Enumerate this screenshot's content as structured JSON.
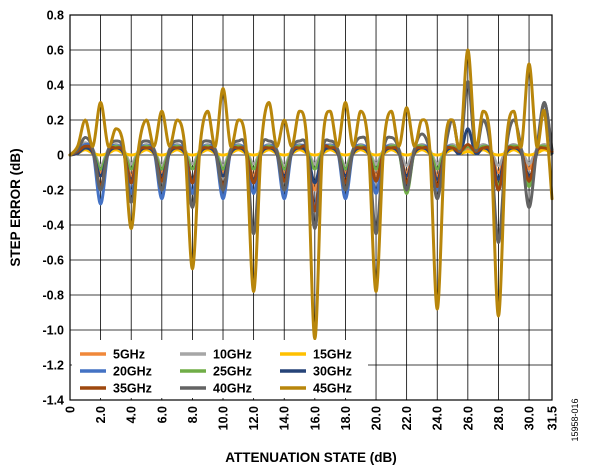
{
  "figure_id": "15958-016",
  "chart_data": {
    "type": "line",
    "xlabel": "ATTENUATION STATE (dB)",
    "ylabel": "STEP ERROR (dB)",
    "xlim": [
      0,
      31.5
    ],
    "ylim": [
      -1.4,
      0.8
    ],
    "x_ticks": [
      0,
      2,
      4,
      6,
      8,
      10,
      12,
      14,
      16,
      18,
      20,
      22,
      24,
      26,
      28,
      30,
      31.5
    ],
    "x_tick_labels": [
      "0",
      "2.0",
      "4.0",
      "6.0",
      "8.0",
      "10.0",
      "12.0",
      "14.0",
      "16.0",
      "18.0",
      "20.0",
      "22.0",
      "24.0",
      "26.0",
      "28.0",
      "30.0",
      "31.5"
    ],
    "y_ticks": [
      -1.4,
      -1.2,
      -1.0,
      -0.8,
      -0.6,
      -0.4,
      -0.2,
      0,
      0.2,
      0.4,
      0.6,
      0.8
    ],
    "y_tick_labels": [
      "-1.4",
      "-1.2",
      "-1.0",
      "-0.8",
      "-0.6",
      "-0.4",
      "-0.2",
      "0",
      "0.2",
      "0.4",
      "0.6",
      "0.8"
    ],
    "grid": true,
    "legend_position": "bottom-left",
    "x": [
      0.5,
      1.0,
      1.5,
      2.0,
      2.5,
      3.0,
      3.5,
      4.0,
      4.5,
      5.0,
      5.5,
      6.0,
      6.5,
      7.0,
      7.5,
      8.0,
      8.5,
      9.0,
      9.5,
      10.0,
      10.5,
      11.0,
      11.5,
      12.0,
      12.5,
      13.0,
      13.5,
      14.0,
      14.5,
      15.0,
      15.5,
      16.0,
      16.5,
      17.0,
      17.5,
      18.0,
      18.5,
      19.0,
      19.5,
      20.0,
      20.5,
      21.0,
      21.5,
      22.0,
      22.5,
      23.0,
      23.5,
      24.0,
      24.5,
      25.0,
      25.5,
      26.0,
      26.5,
      27.0,
      27.5,
      28.0,
      28.5,
      29.0,
      29.5,
      30.0,
      30.5,
      31.0,
      31.5
    ],
    "series": [
      {
        "name": "5GHz",
        "color": "#f0883a",
        "values": [
          0.01,
          0.05,
          0.01,
          -0.1,
          0.02,
          0.03,
          0.01,
          -0.12,
          0.02,
          0.04,
          0.01,
          -0.1,
          0.02,
          0.04,
          0.01,
          -0.15,
          0.02,
          0.04,
          0.01,
          -0.1,
          0.02,
          0.04,
          0.01,
          -0.12,
          0.02,
          0.04,
          0.01,
          -0.1,
          0.02,
          0.04,
          0.01,
          -0.2,
          0.02,
          0.04,
          0.01,
          -0.1,
          0.02,
          0.04,
          0.01,
          -0.12,
          0.02,
          0.04,
          0.01,
          -0.1,
          0.02,
          0.04,
          0.01,
          -0.12,
          0.02,
          0.04,
          0.01,
          0.03,
          0.02,
          0.04,
          0.01,
          -0.1,
          0.02,
          0.04,
          0.01,
          -0.08,
          0.02,
          0.04,
          0.02
        ]
      },
      {
        "name": "10GHz",
        "color": "#a6a6a6",
        "values": [
          0.03,
          0.07,
          0.03,
          -0.06,
          0.03,
          0.06,
          0.03,
          -0.05,
          0.03,
          0.06,
          0.03,
          -0.06,
          0.03,
          0.06,
          0.03,
          -0.05,
          0.03,
          0.06,
          0.03,
          -0.06,
          0.03,
          0.06,
          0.03,
          -0.05,
          0.03,
          0.06,
          0.03,
          -0.06,
          0.03,
          0.06,
          0.03,
          -0.05,
          0.03,
          0.06,
          0.03,
          -0.06,
          0.03,
          0.06,
          0.03,
          -0.05,
          0.03,
          0.06,
          0.03,
          -0.06,
          0.03,
          0.06,
          0.03,
          -0.05,
          0.03,
          0.06,
          0.03,
          0.02,
          0.03,
          0.06,
          0.03,
          -0.06,
          0.03,
          0.06,
          0.03,
          -0.05,
          0.03,
          0.06,
          0.03
        ]
      },
      {
        "name": "15GHz",
        "color": "#ffc000",
        "values": [
          0.01,
          0.03,
          0.01,
          0.0,
          0.01,
          0.03,
          0.01,
          0.0,
          0.01,
          0.03,
          0.01,
          0.0,
          0.01,
          0.03,
          0.01,
          0.0,
          0.01,
          0.03,
          0.01,
          0.0,
          0.01,
          0.03,
          0.01,
          0.0,
          0.01,
          0.03,
          0.01,
          0.0,
          0.01,
          0.03,
          0.01,
          0.0,
          0.01,
          0.03,
          0.01,
          0.0,
          0.01,
          0.03,
          0.01,
          0.0,
          0.01,
          0.03,
          0.01,
          0.0,
          0.01,
          0.03,
          0.01,
          0.0,
          0.01,
          0.03,
          0.01,
          0.02,
          0.01,
          0.03,
          0.01,
          0.0,
          0.01,
          0.03,
          0.01,
          0.0,
          0.01,
          0.03,
          0.01
        ]
      },
      {
        "name": "20GHz",
        "color": "#4472c4",
        "values": [
          0.02,
          0.06,
          0.02,
          -0.28,
          0.02,
          0.05,
          0.02,
          -0.22,
          0.02,
          0.05,
          0.02,
          -0.25,
          0.02,
          0.05,
          0.02,
          -0.22,
          0.02,
          0.05,
          0.02,
          -0.25,
          0.02,
          0.05,
          0.02,
          -0.22,
          0.02,
          0.05,
          0.02,
          -0.25,
          0.02,
          0.05,
          0.02,
          -0.3,
          0.02,
          0.05,
          0.02,
          -0.25,
          0.02,
          0.05,
          0.02,
          -0.22,
          0.02,
          0.05,
          0.02,
          -0.2,
          0.02,
          0.05,
          0.02,
          -0.2,
          0.02,
          0.05,
          0.02,
          0.05,
          0.02,
          0.05,
          0.02,
          -0.2,
          0.02,
          0.05,
          0.02,
          -0.15,
          0.02,
          0.05,
          0.02
        ]
      },
      {
        "name": "25GHz",
        "color": "#70ad47",
        "values": [
          0.02,
          0.05,
          0.02,
          -0.08,
          0.02,
          0.05,
          0.02,
          -0.08,
          0.02,
          0.05,
          0.02,
          -0.08,
          0.02,
          0.05,
          0.02,
          -0.08,
          0.02,
          0.05,
          0.02,
          -0.08,
          0.02,
          0.05,
          0.02,
          -0.08,
          0.02,
          0.05,
          0.02,
          -0.08,
          0.02,
          0.05,
          0.02,
          -0.08,
          0.02,
          0.05,
          0.02,
          -0.08,
          0.02,
          0.05,
          0.02,
          -0.08,
          0.02,
          0.05,
          0.02,
          -0.22,
          0.02,
          0.05,
          0.02,
          -0.08,
          0.02,
          0.05,
          0.02,
          0.05,
          0.02,
          0.05,
          0.02,
          -0.18,
          0.02,
          0.05,
          0.02,
          -0.18,
          0.02,
          0.05,
          0.02
        ]
      },
      {
        "name": "30GHz",
        "color": "#264478",
        "values": [
          0.01,
          0.04,
          0.01,
          -0.12,
          0.01,
          0.04,
          0.01,
          -0.14,
          0.01,
          0.04,
          0.01,
          -0.12,
          0.01,
          0.04,
          0.01,
          -0.14,
          0.01,
          0.04,
          0.01,
          -0.12,
          0.01,
          0.04,
          0.01,
          -0.14,
          0.01,
          0.04,
          0.01,
          -0.12,
          0.01,
          0.04,
          0.01,
          -0.16,
          0.01,
          0.04,
          0.01,
          -0.12,
          0.01,
          0.04,
          0.01,
          -0.14,
          0.01,
          0.04,
          0.01,
          -0.12,
          0.01,
          0.04,
          0.01,
          -0.14,
          0.01,
          0.04,
          0.01,
          0.15,
          0.01,
          0.04,
          0.01,
          -0.14,
          0.01,
          0.04,
          0.01,
          -0.12,
          0.01,
          0.3,
          0.01
        ]
      },
      {
        "name": "35GHz",
        "color": "#9e480e",
        "values": [
          0.02,
          0.05,
          0.02,
          -0.18,
          0.02,
          0.04,
          0.02,
          -0.16,
          0.02,
          0.04,
          0.02,
          -0.15,
          0.02,
          0.04,
          0.02,
          -0.16,
          0.02,
          0.04,
          0.02,
          -0.18,
          0.02,
          0.04,
          0.02,
          -0.16,
          0.02,
          0.04,
          0.02,
          -0.15,
          0.02,
          0.04,
          0.02,
          -0.32,
          0.02,
          0.04,
          0.02,
          -0.16,
          0.02,
          0.04,
          0.02,
          -0.15,
          0.02,
          0.04,
          0.02,
          -0.16,
          0.02,
          0.04,
          0.02,
          -0.18,
          0.02,
          0.04,
          0.02,
          0.06,
          0.02,
          0.04,
          0.02,
          -0.2,
          0.02,
          0.04,
          0.02,
          -0.15,
          0.02,
          0.04,
          0.02
        ]
      },
      {
        "name": "40GHz",
        "color": "#636363",
        "values": [
          0.03,
          0.1,
          0.03,
          -0.2,
          0.03,
          0.08,
          0.03,
          -0.27,
          0.03,
          0.08,
          0.03,
          -0.2,
          0.03,
          0.08,
          0.03,
          -0.3,
          0.03,
          0.08,
          0.03,
          -0.2,
          0.03,
          0.08,
          0.03,
          -0.45,
          0.03,
          0.08,
          0.03,
          -0.2,
          0.03,
          0.08,
          0.03,
          -0.42,
          0.03,
          0.08,
          0.03,
          -0.2,
          0.03,
          0.1,
          0.03,
          -0.45,
          0.03,
          0.1,
          0.03,
          -0.2,
          0.03,
          0.12,
          0.03,
          -0.25,
          0.03,
          0.2,
          0.03,
          0.42,
          0.03,
          0.2,
          0.03,
          -0.5,
          0.03,
          0.2,
          0.03,
          -0.3,
          0.03,
          0.3,
          0.03
        ]
      },
      {
        "name": "45GHz",
        "color": "#b8860b",
        "values": [
          0.05,
          0.2,
          0.05,
          0.3,
          0.05,
          0.15,
          0.05,
          -0.42,
          0.05,
          0.2,
          0.05,
          0.25,
          0.05,
          0.2,
          0.05,
          -0.65,
          0.05,
          0.25,
          0.05,
          0.38,
          0.05,
          0.2,
          0.05,
          -0.78,
          0.05,
          0.3,
          0.05,
          0.2,
          0.05,
          0.25,
          0.05,
          -1.05,
          0.05,
          0.25,
          0.05,
          0.3,
          0.05,
          0.25,
          0.05,
          -0.78,
          0.05,
          0.25,
          0.05,
          0.27,
          0.05,
          0.2,
          0.05,
          -0.88,
          0.05,
          0.2,
          0.05,
          0.6,
          0.05,
          0.25,
          0.05,
          -0.92,
          0.05,
          0.25,
          0.05,
          0.52,
          0.05,
          0.25,
          -0.25
        ]
      }
    ]
  }
}
